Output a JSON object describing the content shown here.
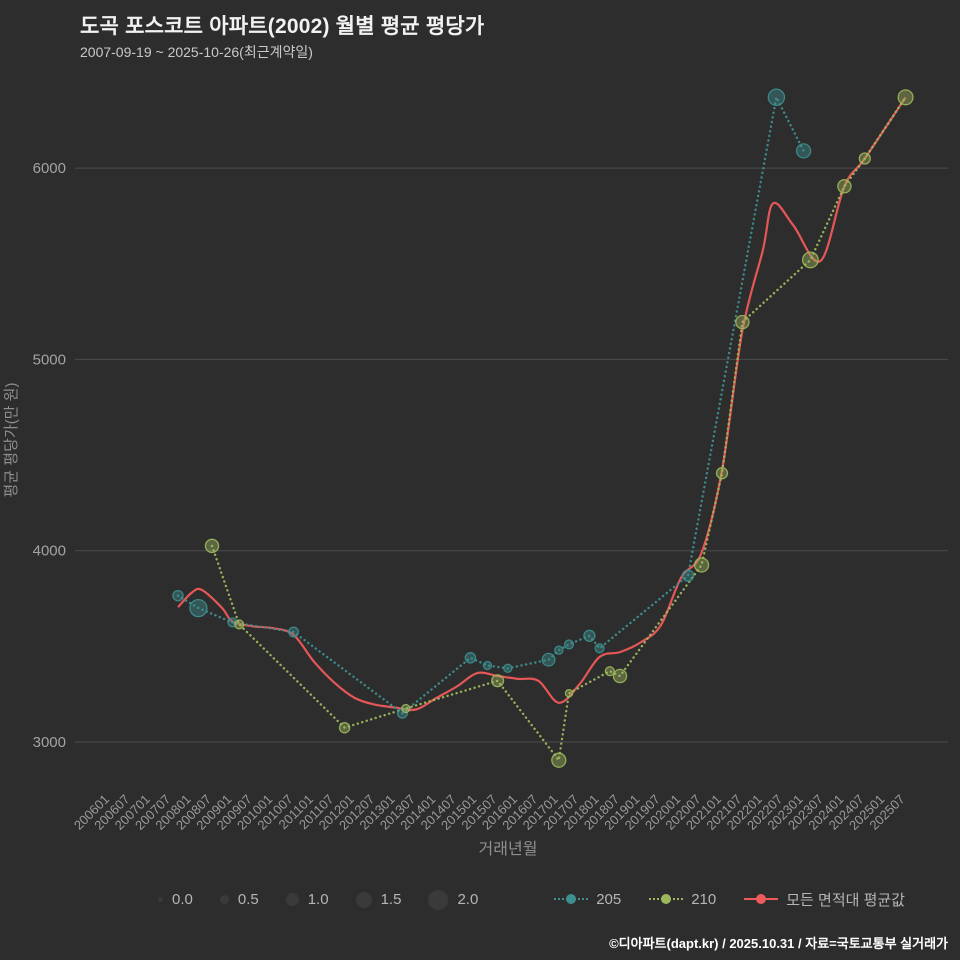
{
  "chart_data": {
    "type": "scatter",
    "title": "도곡 포스코트 아파트(2002) 월별 평균 평당가",
    "subtitle": "2007-09-19 ~ 2025-10-26(최근계약일)",
    "xlabel": "거래년월",
    "ylabel": "평균 평당가(만 원)",
    "y_ticks": [
      3000,
      4000,
      5000,
      6000
    ],
    "ylim": [
      2750,
      6550
    ],
    "grid": "horizontal",
    "legend_position": "bottom",
    "x_ticks": [
      "200601",
      "200607",
      "200701",
      "200707",
      "200801",
      "200807",
      "200901",
      "200907",
      "201001",
      "201007",
      "201101",
      "201107",
      "201201",
      "201207",
      "201301",
      "201307",
      "201401",
      "201407",
      "201501",
      "201507",
      "201601",
      "201607",
      "201701",
      "201707",
      "201801",
      "201807",
      "201901",
      "201907",
      "202001",
      "202007",
      "202101",
      "202107",
      "202201",
      "202207",
      "202301",
      "202307",
      "202401",
      "202407",
      "202501",
      "202507"
    ],
    "size_legend": [
      "0.0",
      "0.5",
      "1.0",
      "1.5",
      "2.0"
    ],
    "series": [
      {
        "name": "205",
        "type": "scatter",
        "color": "#3e8f8f",
        "points": [
          [
            "200709",
            3765,
            0.7
          ],
          [
            "200803",
            3700,
            1.6
          ],
          [
            "200901",
            3625,
            0.5
          ],
          [
            "201007",
            3575,
            0.6
          ],
          [
            "201303",
            3150,
            0.6
          ],
          [
            "201411",
            3440,
            0.7
          ],
          [
            "201504",
            3400,
            0.4
          ],
          [
            "201510",
            3385,
            0.4
          ],
          [
            "201610",
            3430,
            1.0
          ],
          [
            "201701",
            3480,
            0.4
          ],
          [
            "201704",
            3510,
            0.5
          ],
          [
            "201710",
            3555,
            0.8
          ],
          [
            "201801",
            3490,
            0.5
          ],
          [
            "202003",
            3870,
            0.8
          ],
          [
            "202205",
            6370,
            1.5
          ],
          [
            "202301",
            6090,
            1.2
          ]
        ]
      },
      {
        "name": "210",
        "type": "scatter",
        "color": "#9db85c",
        "points": [
          [
            "200807",
            4025,
            1.1
          ],
          [
            "200903",
            3615,
            0.5
          ],
          [
            "201110",
            3075,
            0.7
          ],
          [
            "201304",
            3175,
            0.4
          ],
          [
            "201507",
            3320,
            0.9
          ],
          [
            "201701",
            2905,
            1.2
          ],
          [
            "201704",
            3255,
            0.3
          ],
          [
            "201804",
            3370,
            0.5
          ],
          [
            "201807",
            3345,
            1.1
          ],
          [
            "202007",
            3925,
            1.2
          ],
          [
            "202101",
            4405,
            0.8
          ],
          [
            "202107",
            5195,
            1.1
          ],
          [
            "202303",
            5520,
            1.4
          ],
          [
            "202401",
            5905,
            1.1
          ],
          [
            "202407",
            6050,
            0.8
          ],
          [
            "202507",
            6370,
            1.3
          ]
        ]
      },
      {
        "name": "모든 면적대 평균값",
        "type": "line",
        "color": "#ef5a5a",
        "points": [
          [
            "200709",
            3705
          ],
          [
            "200801",
            3780
          ],
          [
            "200804",
            3795
          ],
          [
            "200810",
            3700
          ],
          [
            "200901",
            3630
          ],
          [
            "200907",
            3605
          ],
          [
            "201001",
            3595
          ],
          [
            "201007",
            3560
          ],
          [
            "201101",
            3420
          ],
          [
            "201107",
            3310
          ],
          [
            "201201",
            3230
          ],
          [
            "201207",
            3195
          ],
          [
            "201301",
            3180
          ],
          [
            "201307",
            3170
          ],
          [
            "201401",
            3230
          ],
          [
            "201407",
            3290
          ],
          [
            "201501",
            3360
          ],
          [
            "201507",
            3345
          ],
          [
            "201601",
            3330
          ],
          [
            "201607",
            3320
          ],
          [
            "201701",
            3205
          ],
          [
            "201707",
            3300
          ],
          [
            "201801",
            3445
          ],
          [
            "201807",
            3470
          ],
          [
            "201901",
            3520
          ],
          [
            "201907",
            3610
          ],
          [
            "202001",
            3860
          ],
          [
            "202007",
            3990
          ],
          [
            "202101",
            4420
          ],
          [
            "202107",
            5150
          ],
          [
            "202201",
            5570
          ],
          [
            "202204",
            5815
          ],
          [
            "202210",
            5700
          ],
          [
            "202306",
            5515
          ],
          [
            "202401",
            5905
          ],
          [
            "202407",
            6050
          ],
          [
            "202507",
            6370
          ]
        ]
      }
    ]
  },
  "footer": {
    "text": "©디아파트(dapt.kr) / 2025.10.31 / 자료=국토교통부 실거래가"
  }
}
